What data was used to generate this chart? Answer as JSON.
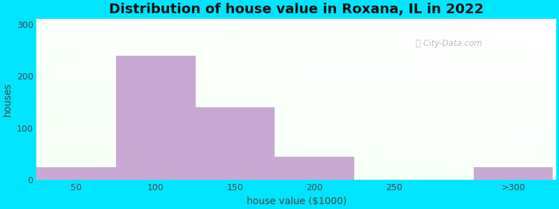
{
  "title": "Distribution of house value in Roxana, IL in 2022",
  "xlabel": "house value ($1000)",
  "ylabel": "houses",
  "bar_centers": [
    50,
    100,
    150,
    200,
    275,
    325
  ],
  "bar_widths": [
    50,
    50,
    50,
    50,
    50,
    50
  ],
  "bar_heights": [
    25,
    240,
    140,
    45,
    0,
    25
  ],
  "bar_color": "#c9a8d4",
  "xtick_positions": [
    50,
    100,
    150,
    200,
    250,
    325
  ],
  "xtick_labels": [
    "50",
    "100",
    "150",
    "200",
    "250",
    ">300"
  ],
  "ytick_positions": [
    0,
    100,
    200,
    300
  ],
  "ytick_labels": [
    "0",
    "100",
    "200",
    "300"
  ],
  "ylim": [
    0,
    310
  ],
  "xlim": [
    25,
    352
  ],
  "bg_outer": "#00e5ff",
  "watermark_text": "City-Data.com",
  "title_fontsize": 14,
  "label_fontsize": 10,
  "grad_color_topleft": [
    0.94,
    1.0,
    0.94
  ],
  "grad_color_topright": [
    0.97,
    1.0,
    0.98
  ],
  "grad_color_bottomleft": [
    0.88,
    1.0,
    0.88
  ],
  "grad_color_bottomright": [
    0.94,
    1.0,
    0.96
  ]
}
